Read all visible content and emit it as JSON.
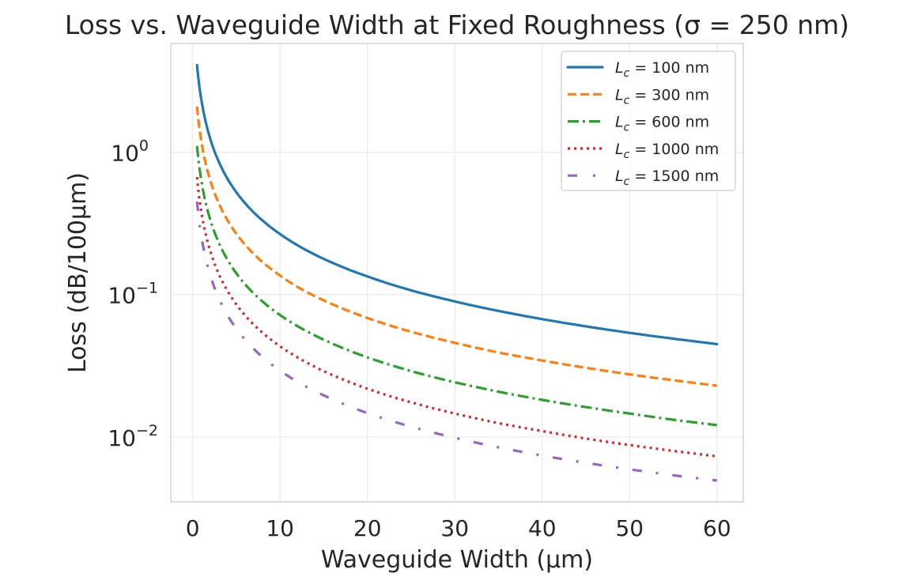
{
  "chart_data": {
    "type": "line",
    "title": "Loss vs. Waveguide Width at Fixed Roughness (σ = 250 nm)",
    "xlabel": "Waveguide Width (μm)",
    "ylabel": "Loss (dB/100μm)",
    "xlim": [
      -2.5,
      63
    ],
    "ylim": [
      0.0035,
      5.8
    ],
    "yscale": "log",
    "grid": true,
    "legend_position": "top-right",
    "x_ticks": [
      0,
      10,
      20,
      30,
      40,
      50,
      60
    ],
    "x_tick_labels": [
      "0",
      "10",
      "20",
      "30",
      "40",
      "50",
      "60"
    ],
    "y_ticks": [
      1,
      0.1,
      0.01
    ],
    "y_tick_labels": [
      {
        "base": "10",
        "exp": "0"
      },
      {
        "base": "10",
        "exp": "−1"
      },
      {
        "base": "10",
        "exp": "−2"
      }
    ],
    "x": [
      0.5,
      1,
      1.5,
      2,
      3,
      4,
      5,
      6,
      8,
      10,
      12,
      15,
      20,
      25,
      30,
      35,
      40,
      45,
      50,
      55,
      60
    ],
    "series": [
      {
        "name": "L_c = 100 nm",
        "label_prefix": "L",
        "label_sub": "c",
        "label_rest": " = 100 nm",
        "color": "#1f77b4",
        "style": "solid",
        "values": [
          4.09,
          2.33,
          1.63,
          1.25,
          0.855,
          0.649,
          0.523,
          0.438,
          0.331,
          0.266,
          0.222,
          0.178,
          0.134,
          0.107,
          0.0895,
          0.0768,
          0.0672,
          0.0598,
          0.0538,
          0.049,
          0.0449
        ]
      },
      {
        "name": "L_c = 300 nm",
        "label_prefix": "L",
        "label_sub": "c",
        "label_rest": " = 300 nm",
        "color": "#ff7f0e",
        "style": "dashed",
        "values": [
          2.09,
          1.19,
          0.831,
          0.639,
          0.437,
          0.332,
          0.267,
          0.224,
          0.169,
          0.136,
          0.113,
          0.0911,
          0.0684,
          0.0548,
          0.0458,
          0.0392,
          0.0344,
          0.0306,
          0.0275,
          0.025,
          0.0229
        ]
      },
      {
        "name": "L_c = 600 nm",
        "label_prefix": "L",
        "label_sub": "c",
        "label_rest": " = 600 nm",
        "color": "#2ca02c",
        "style": "dashdot",
        "values": [
          1.106,
          0.629,
          0.439,
          0.338,
          0.231,
          0.175,
          0.141,
          0.118,
          0.0894,
          0.0718,
          0.06,
          0.0482,
          0.0362,
          0.029,
          0.0242,
          0.0208,
          0.0182,
          0.0162,
          0.0146,
          0.0132,
          0.0121
        ]
      },
      {
        "name": "L_c = 1000 nm",
        "label_prefix": "L",
        "label_sub": "c",
        "label_rest": " = 1000 nm",
        "color": "#d62728",
        "style": "dotted",
        "values": [
          0.667,
          0.379,
          0.265,
          0.204,
          0.139,
          0.106,
          0.0853,
          0.0714,
          0.0539,
          0.0433,
          0.0362,
          0.029,
          0.0218,
          0.0175,
          0.0146,
          0.0125,
          0.011,
          0.00974,
          0.00877,
          0.00798,
          0.00731
        ]
      },
      {
        "name": "L_c = 1500 nm",
        "label_prefix": "L",
        "label_sub": "c",
        "label_rest": " = 1500 nm",
        "color": "#9467bd",
        "style": "loose-dashdot",
        "values": [
          0.45,
          0.256,
          0.179,
          0.138,
          0.094,
          0.0714,
          0.0576,
          0.0482,
          0.0364,
          0.0292,
          0.0244,
          0.0196,
          0.0147,
          0.0118,
          0.00985,
          0.00845,
          0.0074,
          0.00658,
          0.00592,
          0.00538,
          0.00494
        ]
      }
    ]
  }
}
